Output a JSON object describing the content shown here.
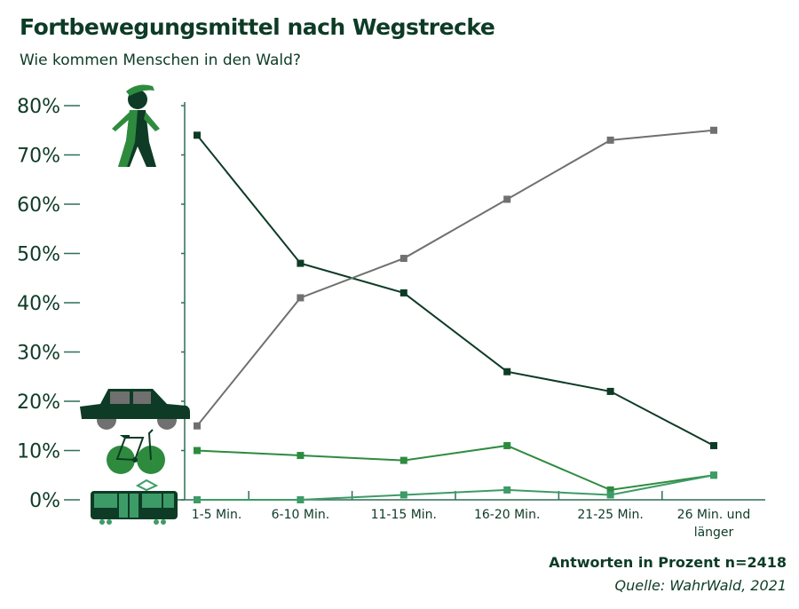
{
  "title": "Fortbewegungsmittel nach Wegstrecke",
  "subtitle": "Wie kommen Menschen in den Wald?",
  "footer": {
    "note": "Antworten in Prozent  n=2418",
    "source": "Quelle: WahrWald, 2021"
  },
  "chart_data": {
    "type": "line",
    "title": "Fortbewegungsmittel nach Wegstrecke",
    "xlabel": "",
    "ylabel": "",
    "categories": [
      "1-5 Min.",
      "6-10 Min.",
      "11-15 Min.",
      "16-20 Min.",
      "21-25 Min.",
      "26 Min. und länger"
    ],
    "yticks": [
      "0%",
      "10%",
      "20%",
      "30%",
      "40%",
      "50%",
      "60%",
      "70%",
      "80%"
    ],
    "ylim": [
      0,
      80
    ],
    "legend": "icons on left",
    "series": [
      {
        "name": "zu Fuß",
        "icon": "walking-person-icon",
        "color": "#0d3b26",
        "values": [
          74,
          48,
          42,
          26,
          22,
          11
        ]
      },
      {
        "name": "Auto",
        "icon": "car-icon",
        "color": "#707070",
        "values": [
          15,
          41,
          49,
          61,
          73,
          75
        ]
      },
      {
        "name": "Fahrrad",
        "icon": "bicycle-icon",
        "color": "#2e8b3e",
        "values": [
          10,
          9,
          8,
          11,
          2,
          5
        ]
      },
      {
        "name": "ÖPNV",
        "icon": "tram-icon",
        "color": "#3d9b67",
        "values": [
          0,
          0,
          1,
          2,
          1,
          5
        ]
      }
    ]
  }
}
